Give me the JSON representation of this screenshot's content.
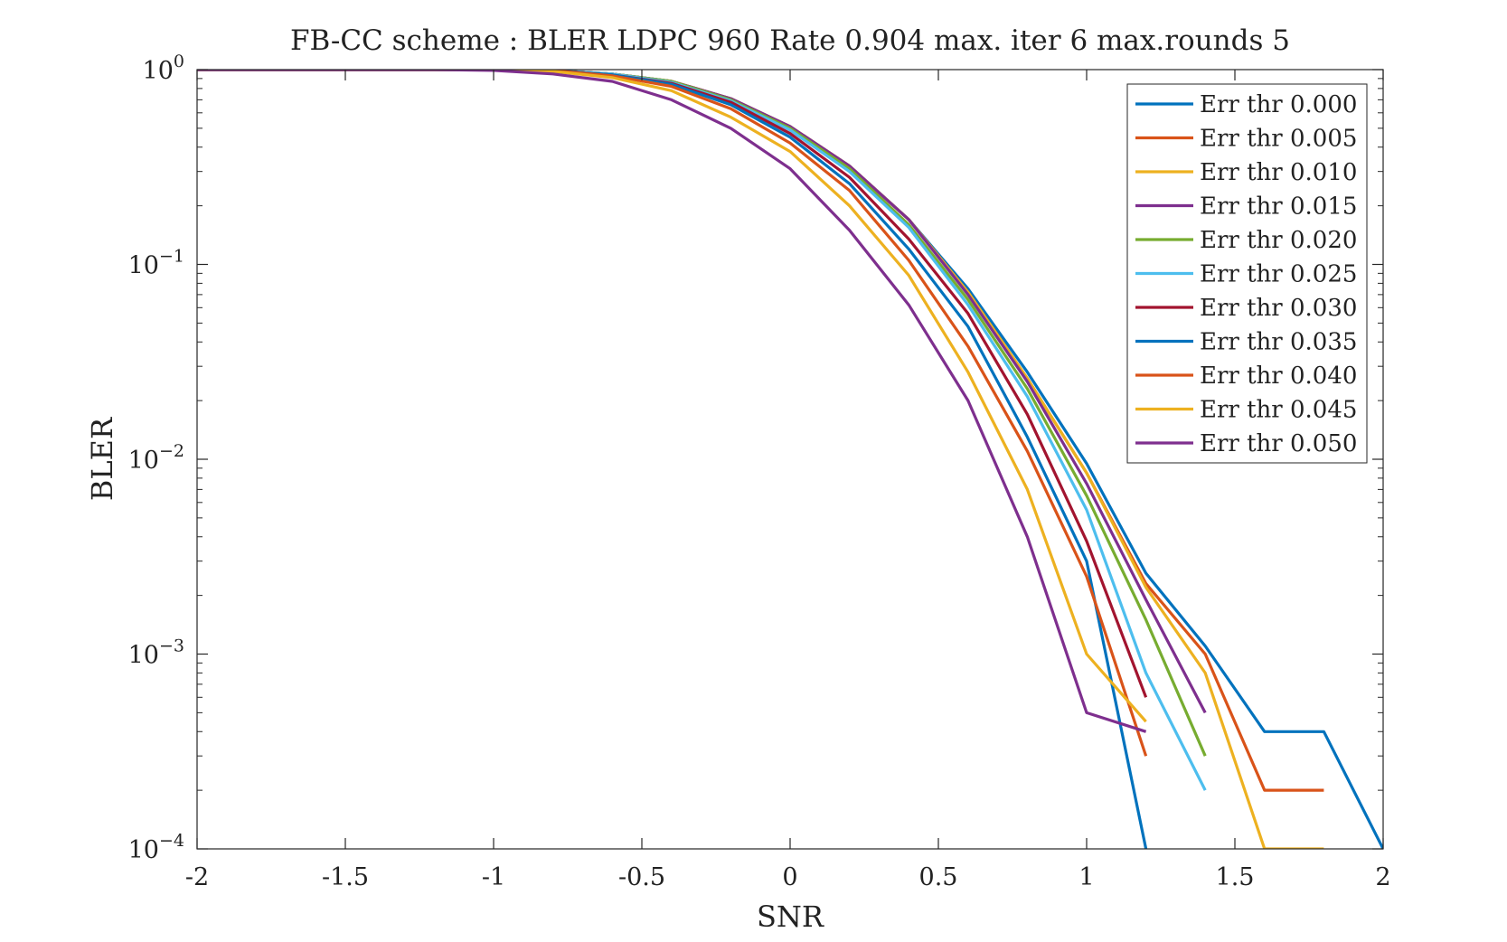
{
  "chart_data": {
    "type": "line",
    "title": "FB-CC scheme : BLER LDPC 960 Rate 0.904 max. iter 6 max.rounds 5",
    "xlabel": "SNR",
    "ylabel": "BLER",
    "xlim": [
      -2,
      2
    ],
    "ylim": [
      0.0001,
      1
    ],
    "yscale": "log",
    "grid": false,
    "legend_position": "top-right",
    "x_ticks": [
      -2,
      -1.5,
      -1,
      -0.5,
      0,
      0.5,
      1,
      1.5,
      2
    ],
    "x_tick_labels": [
      "-2",
      "-1.5",
      "-1",
      "-0.5",
      "0",
      "0.5",
      "1",
      "1.5",
      "2"
    ],
    "y_ticks": [
      {
        "value": 1,
        "base": "10",
        "exp": "0"
      },
      {
        "value": 0.1,
        "base": "10",
        "exp": "−1"
      },
      {
        "value": 0.01,
        "base": "10",
        "exp": "−2"
      },
      {
        "value": 0.001,
        "base": "10",
        "exp": "−3"
      },
      {
        "value": 0.0001,
        "base": "10",
        "exp": "−4"
      }
    ],
    "series": [
      {
        "name": "Err thr 0.000",
        "color": "#0072BD",
        "x": [
          -2,
          -1.8,
          -1.6,
          -1.4,
          -1.2,
          -1,
          -0.8,
          -0.6,
          -0.4,
          -0.2,
          0,
          0.2,
          0.4,
          0.6,
          0.8,
          1,
          1.2,
          1.4,
          1.6,
          1.8,
          2
        ],
        "y": [
          1,
          1,
          1,
          1,
          1,
          1,
          0.99,
          0.95,
          0.87,
          0.71,
          0.51,
          0.32,
          0.17,
          0.075,
          0.028,
          0.0095,
          0.0026,
          0.0011,
          0.0004,
          0.0004,
          0.0001
        ]
      },
      {
        "name": "Err thr 0.005",
        "color": "#D95319",
        "x": [
          -2,
          -1.8,
          -1.6,
          -1.4,
          -1.2,
          -1,
          -0.8,
          -0.6,
          -0.4,
          -0.2,
          0,
          0.2,
          0.4,
          0.6,
          0.8,
          1,
          1.2,
          1.4,
          1.6,
          1.8
        ],
        "y": [
          1,
          1,
          1,
          1,
          1,
          1,
          0.99,
          0.95,
          0.87,
          0.71,
          0.51,
          0.32,
          0.17,
          0.072,
          0.026,
          0.0085,
          0.0023,
          0.001,
          0.0002,
          0.0002
        ]
      },
      {
        "name": "Err thr 0.010",
        "color": "#EDB120",
        "x": [
          -2,
          -1.8,
          -1.6,
          -1.4,
          -1.2,
          -1,
          -0.8,
          -0.6,
          -0.4,
          -0.2,
          0,
          0.2,
          0.4,
          0.6,
          0.8,
          1,
          1.2,
          1.4,
          1.6,
          1.8
        ],
        "y": [
          1,
          1,
          1,
          1,
          1,
          1,
          0.99,
          0.95,
          0.87,
          0.71,
          0.51,
          0.32,
          0.17,
          0.072,
          0.026,
          0.0085,
          0.0022,
          0.0008,
          0.0001,
          0.0001
        ]
      },
      {
        "name": "Err thr 0.015",
        "color": "#7E2F8E",
        "x": [
          -2,
          -1.8,
          -1.6,
          -1.4,
          -1.2,
          -1,
          -0.8,
          -0.6,
          -0.4,
          -0.2,
          0,
          0.2,
          0.4,
          0.6,
          0.8,
          1,
          1.2,
          1.4
        ],
        "y": [
          1,
          1,
          1,
          1,
          1,
          1,
          0.99,
          0.95,
          0.87,
          0.71,
          0.51,
          0.32,
          0.17,
          0.07,
          0.025,
          0.0075,
          0.0019,
          0.0005
        ]
      },
      {
        "name": "Err thr 0.020",
        "color": "#77AC30",
        "x": [
          -2,
          -1.8,
          -1.6,
          -1.4,
          -1.2,
          -1,
          -0.8,
          -0.6,
          -0.4,
          -0.2,
          0,
          0.2,
          0.4,
          0.6,
          0.8,
          1,
          1.2,
          1.4
        ],
        "y": [
          1,
          1,
          1,
          1,
          1,
          1,
          0.99,
          0.95,
          0.87,
          0.7,
          0.5,
          0.31,
          0.16,
          0.066,
          0.023,
          0.0065,
          0.0015,
          0.0003
        ]
      },
      {
        "name": "Err thr 0.025",
        "color": "#4DBEEE",
        "x": [
          -2,
          -1.8,
          -1.6,
          -1.4,
          -1.2,
          -1,
          -0.8,
          -0.6,
          -0.4,
          -0.2,
          0,
          0.2,
          0.4,
          0.6,
          0.8,
          1,
          1.2,
          1.4
        ],
        "y": [
          1,
          1,
          1,
          1,
          1,
          1,
          0.99,
          0.95,
          0.86,
          0.69,
          0.49,
          0.3,
          0.155,
          0.062,
          0.021,
          0.0055,
          0.0008,
          0.0002
        ]
      },
      {
        "name": "Err thr 0.030",
        "color": "#A2142F",
        "x": [
          -2,
          -1.8,
          -1.6,
          -1.4,
          -1.2,
          -1,
          -0.8,
          -0.6,
          -0.4,
          -0.2,
          0,
          0.2,
          0.4,
          0.6,
          0.8,
          1,
          1.2
        ],
        "y": [
          1,
          1,
          1,
          1,
          1,
          1,
          0.99,
          0.94,
          0.85,
          0.68,
          0.47,
          0.28,
          0.135,
          0.056,
          0.017,
          0.0038,
          0.0006
        ]
      },
      {
        "name": "Err thr 0.035",
        "color": "#0072BD",
        "x": [
          -2,
          -1.8,
          -1.6,
          -1.4,
          -1.2,
          -1,
          -0.8,
          -0.6,
          -0.4,
          -0.2,
          0,
          0.2,
          0.4,
          0.6,
          0.8,
          1,
          1.2
        ],
        "y": [
          1,
          1,
          1,
          1,
          1,
          1,
          0.99,
          0.94,
          0.84,
          0.66,
          0.45,
          0.26,
          0.12,
          0.048,
          0.013,
          0.003,
          0.0001
        ]
      },
      {
        "name": "Err thr 0.040",
        "color": "#D95319",
        "x": [
          -2,
          -1.8,
          -1.6,
          -1.4,
          -1.2,
          -1,
          -0.8,
          -0.6,
          -0.4,
          -0.2,
          0,
          0.2,
          0.4,
          0.6,
          0.8,
          1,
          1.2
        ],
        "y": [
          1,
          1,
          1,
          1,
          1,
          1,
          0.99,
          0.93,
          0.82,
          0.63,
          0.42,
          0.24,
          0.105,
          0.038,
          0.011,
          0.0025,
          0.0003
        ]
      },
      {
        "name": "Err thr 0.045",
        "color": "#EDB120",
        "x": [
          -2,
          -1.8,
          -1.6,
          -1.4,
          -1.2,
          -1,
          -0.8,
          -0.6,
          -0.4,
          -0.2,
          0,
          0.2,
          0.4,
          0.6,
          0.8,
          1,
          1.2
        ],
        "y": [
          1,
          1,
          1,
          1,
          1,
          1,
          0.98,
          0.91,
          0.78,
          0.57,
          0.38,
          0.2,
          0.088,
          0.028,
          0.007,
          0.001,
          0.00045
        ]
      },
      {
        "name": "Err thr 0.050",
        "color": "#7E2F8E",
        "x": [
          -2,
          -1.8,
          -1.6,
          -1.4,
          -1.2,
          -1,
          -0.8,
          -0.6,
          -0.4,
          -0.2,
          0,
          0.2,
          0.4,
          0.6,
          0.8,
          1,
          1.2
        ],
        "y": [
          1,
          1,
          1,
          1,
          1,
          0.99,
          0.95,
          0.87,
          0.7,
          0.5,
          0.31,
          0.15,
          0.062,
          0.02,
          0.004,
          0.0005,
          0.0004
        ]
      }
    ]
  }
}
